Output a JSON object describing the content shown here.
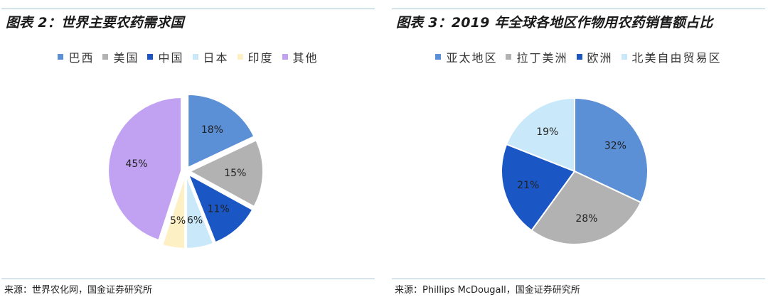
{
  "chart_data": [
    {
      "type": "pie",
      "title": "图表 2：世界主要农药需求国",
      "categories": [
        "巴西",
        "美国",
        "中国",
        "日本",
        "印度",
        "其他"
      ],
      "values": [
        18,
        15,
        11,
        6,
        5,
        45
      ],
      "labels": [
        "18%",
        "15%",
        "11%",
        "6%",
        "5%",
        "45%"
      ],
      "colors": [
        "#5b8fd6",
        "#b2b2b2",
        "#1a56c4",
        "#c9e9fa",
        "#fdf0c4",
        "#c0a1f2"
      ],
      "legend_position": "top",
      "source": "来源：世界农化网，国金证券研究所"
    },
    {
      "type": "pie",
      "title": "图表 3：2019 年全球各地区作物用农药销售额占比",
      "categories": [
        "亚太地区",
        "拉丁美洲",
        "欧洲",
        "北美自由贸易区"
      ],
      "values": [
        32,
        28,
        21,
        19
      ],
      "labels": [
        "32%",
        "28%",
        "21%",
        "19%"
      ],
      "colors": [
        "#5b8fd6",
        "#b2b2b2",
        "#1a56c4",
        "#c9e9fa"
      ],
      "legend_position": "top",
      "source": "来源：Phillips McDougall，国金证券研究所"
    }
  ]
}
